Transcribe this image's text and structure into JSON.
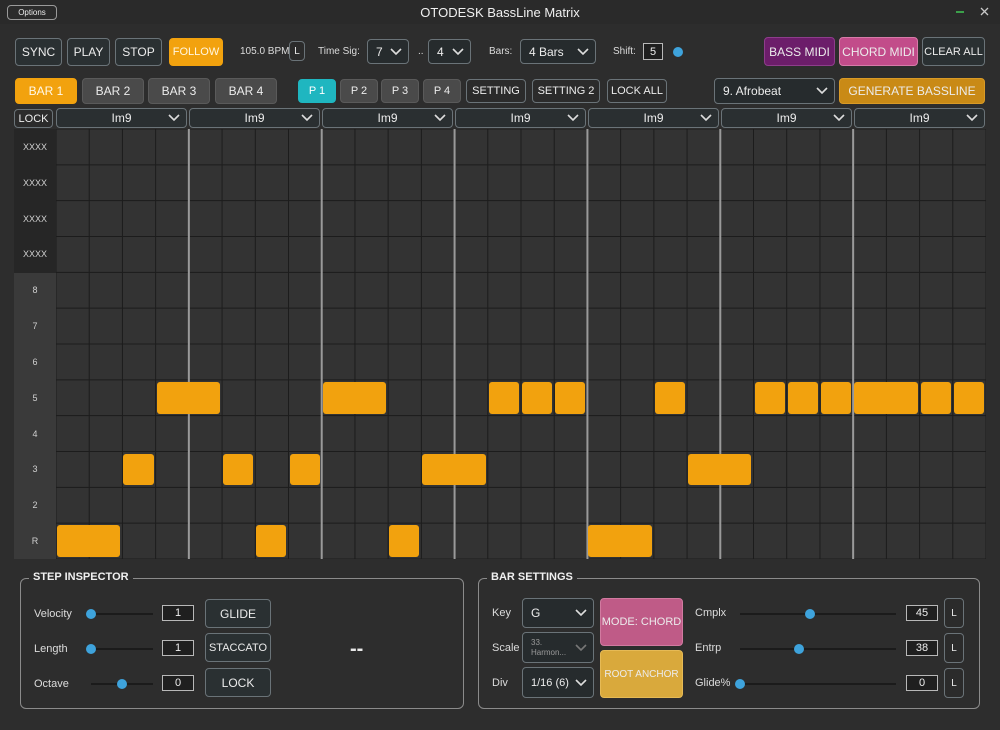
{
  "window": {
    "title": "OTODESK BassLine Matrix",
    "options_label": "Options"
  },
  "transport": {
    "sync": "SYNC",
    "play": "PLAY",
    "stop": "STOP",
    "follow": "FOLLOW",
    "bpm": "105.0 BPM",
    "bpm_lock": "L",
    "time_sig_label": "Time Sig:",
    "time_sig_num": "7",
    "time_sig_sep": "..",
    "time_sig_den": "4",
    "bars_label": "Bars:",
    "bars_value": "4 Bars",
    "shift_label": "Shift:",
    "shift_value": "5",
    "bass_midi": "BASS MIDI",
    "chord_midi": "CHORD MIDI",
    "clear_all": "CLEAR ALL"
  },
  "bar_tabs": [
    "BAR 1",
    "BAR 2",
    "BAR 3",
    "BAR 4"
  ],
  "pattern_tabs": [
    "P 1",
    "P 2",
    "P 3",
    "P 4"
  ],
  "setting": "SETTING",
  "setting2": "SETTING 2",
  "lock_all": "LOCK ALL",
  "style_select": "9. Afrobeat",
  "generate": "GENERATE BASSLINE",
  "lock_label": "LOCK",
  "chords": [
    "Im9",
    "Im9",
    "Im9",
    "Im9",
    "Im9",
    "Im9",
    "Im9"
  ],
  "row_labels": [
    "XXXX",
    "XXXX",
    "XXXX",
    "XXXX",
    "8",
    "7",
    "6",
    "5",
    "4",
    "3",
    "2",
    "R"
  ],
  "notes": [
    {
      "row": 11,
      "step": 0,
      "len": 2
    },
    {
      "row": 9,
      "step": 2,
      "len": 1
    },
    {
      "row": 7,
      "step": 3,
      "len": 2
    },
    {
      "row": 9,
      "step": 5,
      "len": 1
    },
    {
      "row": 11,
      "step": 6,
      "len": 1
    },
    {
      "row": 9,
      "step": 7,
      "len": 1
    },
    {
      "row": 7,
      "step": 8,
      "len": 2
    },
    {
      "row": 11,
      "step": 10,
      "len": 1
    },
    {
      "row": 9,
      "step": 11,
      "len": 2
    },
    {
      "row": 7,
      "step": 13,
      "len": 1
    },
    {
      "row": 7,
      "step": 14,
      "len": 1
    },
    {
      "row": 7,
      "step": 15,
      "len": 1
    },
    {
      "row": 11,
      "step": 16,
      "len": 2
    },
    {
      "row": 7,
      "step": 18,
      "len": 1
    },
    {
      "row": 9,
      "step": 19,
      "len": 2
    },
    {
      "row": 7,
      "step": 21,
      "len": 1
    },
    {
      "row": 7,
      "step": 22,
      "len": 1
    },
    {
      "row": 7,
      "step": 23,
      "len": 1
    },
    {
      "row": 7,
      "step": 24,
      "len": 2
    },
    {
      "row": 7,
      "step": 26,
      "len": 1
    },
    {
      "row": 7,
      "step": 27,
      "len": 1
    }
  ],
  "step_inspector": {
    "title": "STEP INSPECTOR",
    "velocity_label": "Velocity",
    "velocity_value": "1",
    "velocity_level": 0.0,
    "length_label": "Length",
    "length_value": "1",
    "length_level": 0.0,
    "octave_label": "Octave",
    "octave_value": "0",
    "octave_level": 0.5,
    "glide": "GLIDE",
    "staccato": "STACCATO",
    "lock": "LOCK",
    "selected": "--"
  },
  "bar_settings": {
    "title": "BAR SETTINGS",
    "key_label": "Key",
    "key_value": "G",
    "scale_label": "Scale",
    "scale_value_1": "33.",
    "scale_value_2": "Harmon...",
    "div_label": "Div",
    "div_value": "1/16 (6)",
    "mode_chord": "MODE: CHORD",
    "root_anchor": "ROOT ANCHOR",
    "cmplx_label": "Cmplx",
    "cmplx_value": "45",
    "cmplx_level": 0.45,
    "entrp_label": "Entrp",
    "entrp_value": "38",
    "entrp_level": 0.38,
    "glide_label": "Glide%",
    "glide_value": "0",
    "glide_level": 0.0,
    "lock": "L"
  },
  "colors": {
    "accent_orange": "#f2a20e",
    "teal": "#1fb6c0",
    "purple": "#6c1d6a",
    "pink": "#c24c8a",
    "gold": "#c98a16",
    "mode_pink": "#bf5b87",
    "anchor_gold": "#d9a93c"
  }
}
